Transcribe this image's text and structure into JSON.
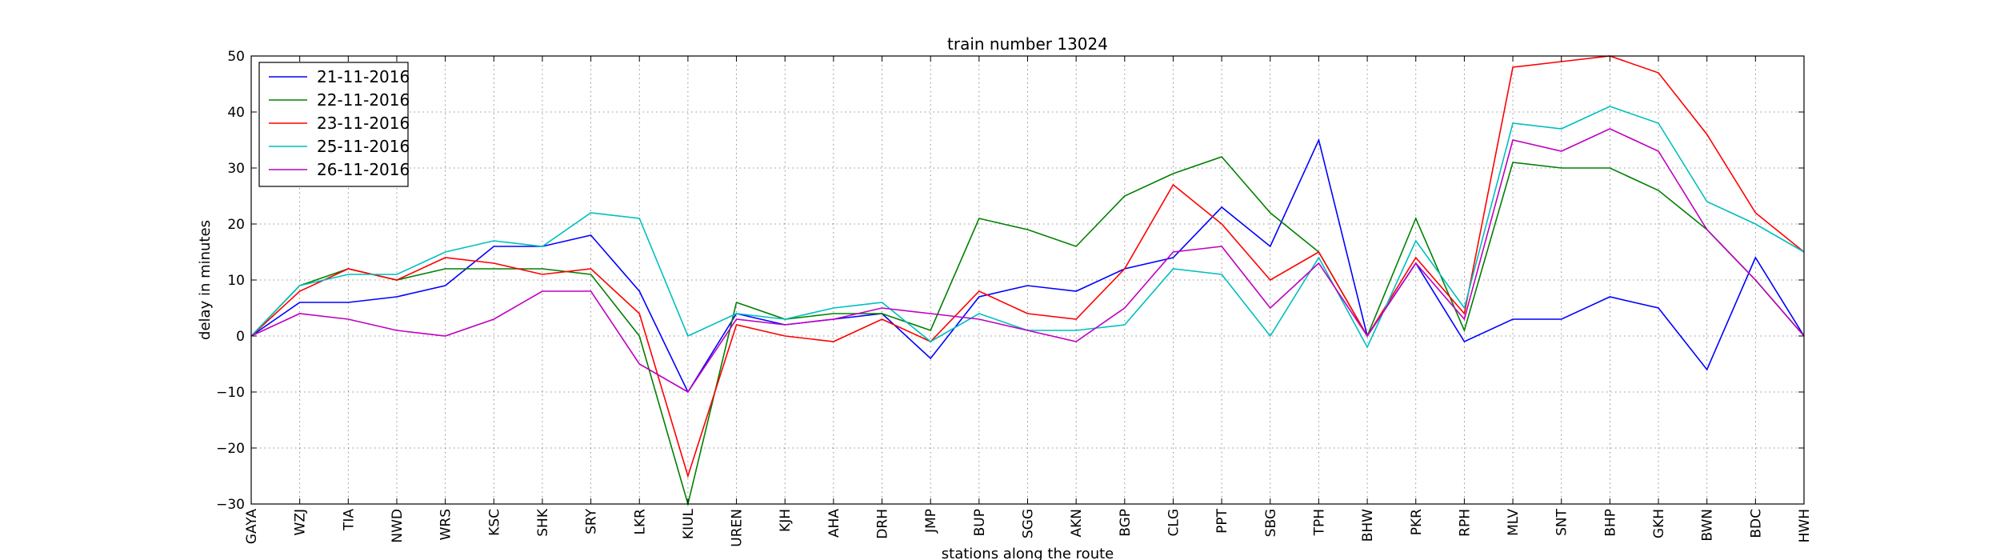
{
  "chart_data": {
    "type": "line",
    "title": "train number 13024",
    "xlabel": "stations along the route",
    "ylabel": "delay in minutes",
    "ylim": [
      -30,
      50
    ],
    "yticks": [
      -30,
      -20,
      -10,
      0,
      10,
      20,
      30,
      40,
      50
    ],
    "ytick_labels": [
      "−30",
      "−20",
      "−10",
      "0",
      "10",
      "20",
      "30",
      "40",
      "50"
    ],
    "grid": true,
    "legend_position": "top-left",
    "categories": [
      "GAYA",
      "WZJ",
      "TIA",
      "NWD",
      "WRS",
      "KSC",
      "SHK",
      "SRY",
      "LKR",
      "KIUL",
      "UREN",
      "KJH",
      "AHA",
      "DRH",
      "JMP",
      "BUP",
      "SGG",
      "AKN",
      "BGP",
      "CLG",
      "PPT",
      "SBG",
      "TPH",
      "BHW",
      "PKR",
      "RPH",
      "MLV",
      "SNT",
      "BHP",
      "GKH",
      "BWN",
      "BDC",
      "HWH"
    ],
    "series": [
      {
        "name": "21-11-2016",
        "color": "#0000ff",
        "values": [
          0,
          6,
          6,
          7,
          9,
          16,
          16,
          18,
          8,
          -10,
          4,
          2,
          3,
          4,
          -4,
          7,
          9,
          8,
          12,
          14,
          23,
          16,
          35,
          0,
          13,
          -1,
          3,
          3,
          7,
          5,
          -6,
          14,
          0
        ]
      },
      {
        "name": "22-11-2016",
        "color": "#008000",
        "values": [
          0,
          9,
          12,
          10,
          12,
          12,
          12,
          11,
          0,
          -30,
          6,
          3,
          4,
          4,
          1,
          21,
          19,
          16,
          25,
          29,
          32,
          22,
          15,
          0,
          21,
          1,
          31,
          30,
          30,
          26,
          19,
          10,
          0
        ]
      },
      {
        "name": "23-11-2016",
        "color": "#ff0000",
        "values": [
          0,
          8,
          12,
          10,
          14,
          13,
          11,
          12,
          4,
          -25,
          2,
          0,
          -1,
          3,
          -1,
          8,
          4,
          3,
          12,
          27,
          20,
          10,
          15,
          0,
          14,
          4,
          48,
          49,
          50,
          47,
          36,
          22,
          15
        ]
      },
      {
        "name": "25-11-2016",
        "color": "#00bfbf",
        "values": [
          0,
          9,
          11,
          11,
          15,
          17,
          16,
          22,
          21,
          0,
          4,
          3,
          5,
          6,
          -1,
          4,
          1,
          1,
          2,
          12,
          11,
          0,
          14,
          -2,
          17,
          5,
          38,
          37,
          41,
          38,
          24,
          20,
          15
        ]
      },
      {
        "name": "26-11-2016",
        "color": "#bf00bf",
        "values": [
          0,
          4,
          3,
          1,
          0,
          3,
          8,
          8,
          -5,
          -10,
          3,
          2,
          3,
          5,
          4,
          3,
          1,
          -1,
          5,
          15,
          16,
          5,
          13,
          0,
          13,
          3,
          35,
          33,
          37,
          33,
          19,
          10,
          0
        ]
      }
    ]
  }
}
